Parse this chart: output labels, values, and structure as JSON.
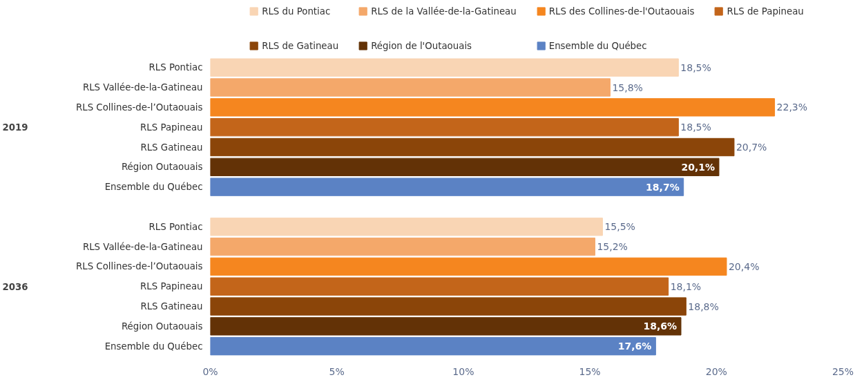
{
  "chart_data": {
    "type": "bar",
    "orientation": "horizontal",
    "legend": "top",
    "categories": [
      "RLS Pontiac",
      "RLS Vallée-de-la-Gatineau",
      "RLS Collines-de-l’Outaouais",
      "RLS Papineau",
      "RLS Gatineau",
      "Région Outaouais",
      "Ensemble du Québec",
      "RLS Pontiac",
      "RLS Vallée-de-la-Gatineau",
      "RLS Collines-de-l’Outaouais",
      "RLS Papineau",
      "RLS Gatineau",
      "Région Outaouais",
      "Ensemble du Québec"
    ],
    "annotations": [
      "2019",
      "2036"
    ],
    "xlim": [
      0,
      25
    ],
    "xticks": [
      {
        "value": 0,
        "label": "0%"
      },
      {
        "value": 5,
        "label": "5%"
      },
      {
        "value": 10,
        "label": "10%"
      },
      {
        "value": 15,
        "label": "15%"
      },
      {
        "value": 20,
        "label": "20%"
      },
      {
        "value": 25,
        "label": "25%"
      }
    ],
    "series": [
      {
        "name": "RLS du Pontiac",
        "color": "#f9d5b4",
        "values": [
          18.5,
          null,
          null,
          null,
          null,
          null,
          null,
          15.5,
          null,
          null,
          null,
          null,
          null,
          null
        ],
        "value_labels": [
          "18,5%",
          null,
          null,
          null,
          null,
          null,
          null,
          "15,5%",
          null,
          null,
          null,
          null,
          null,
          null
        ]
      },
      {
        "name": "RLS de la Vallée-de-la-Gatineau",
        "color": "#f4a86a",
        "values": [
          null,
          15.8,
          null,
          null,
          null,
          null,
          null,
          null,
          15.2,
          null,
          null,
          null,
          null,
          null
        ],
        "value_labels": [
          null,
          "15,8%",
          null,
          null,
          null,
          null,
          null,
          null,
          "15,2%",
          null,
          null,
          null,
          null,
          null
        ]
      },
      {
        "name": "RLS des Collines-de-l'Outaouais",
        "color": "#f5861f",
        "values": [
          null,
          null,
          22.3,
          null,
          null,
          null,
          null,
          null,
          null,
          20.4,
          null,
          null,
          null,
          null
        ],
        "value_labels": [
          null,
          null,
          "22,3%",
          null,
          null,
          null,
          null,
          null,
          null,
          "20,4%",
          null,
          null,
          null,
          null
        ]
      },
      {
        "name": "RLS de Papineau",
        "color": "#c3651a",
        "values": [
          null,
          null,
          null,
          18.5,
          null,
          null,
          null,
          null,
          null,
          null,
          18.1,
          null,
          null,
          null
        ],
        "value_labels": [
          null,
          null,
          null,
          "18,5%",
          null,
          null,
          null,
          null,
          null,
          null,
          "18,1%",
          null,
          null,
          null
        ]
      },
      {
        "name": "RLS de Gatineau",
        "color": "#8b4509",
        "values": [
          null,
          null,
          null,
          null,
          20.7,
          null,
          null,
          null,
          null,
          null,
          null,
          18.8,
          null,
          null
        ],
        "value_labels": [
          null,
          null,
          null,
          null,
          "20,7%",
          null,
          null,
          null,
          null,
          null,
          null,
          "18,8%",
          null,
          null
        ]
      },
      {
        "name": "Région de l'Outaouais",
        "color": "#633206",
        "values": [
          null,
          null,
          null,
          null,
          null,
          20.1,
          null,
          null,
          null,
          null,
          null,
          null,
          18.6,
          null
        ],
        "value_labels": [
          null,
          null,
          null,
          null,
          null,
          "20,1%",
          null,
          null,
          null,
          null,
          null,
          null,
          "18,6%",
          null
        ]
      },
      {
        "name": "Ensemble du Québec",
        "color": "#5b82c4",
        "values": [
          null,
          null,
          null,
          null,
          null,
          null,
          18.7,
          null,
          null,
          null,
          null,
          null,
          null,
          17.6
        ],
        "value_labels": [
          null,
          null,
          null,
          null,
          null,
          null,
          "18,7%",
          null,
          null,
          null,
          null,
          null,
          null,
          "17,6%"
        ]
      }
    ]
  }
}
